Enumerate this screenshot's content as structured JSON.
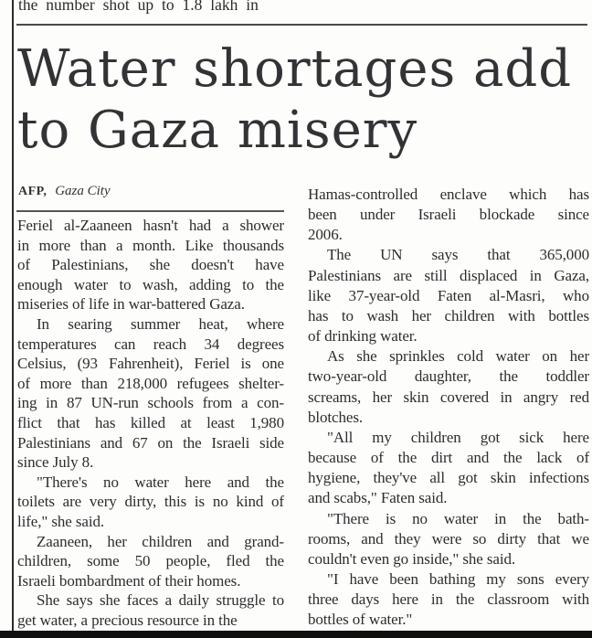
{
  "colors": {
    "ink": "#2d2d2e",
    "headline_ink": "#333336",
    "rule": "#4a4a4a",
    "bottom_bar": "#0f0f0f",
    "paper": "#fdfdfc"
  },
  "prev_article_snippet": "the number shot up to 1.8 lakh in",
  "headline": "Water shortages add to Gaza misery",
  "byline": {
    "agency": "AFP,",
    "location": "Gaza City"
  },
  "article": {
    "columns": [
      {
        "paragraphs": [
          {
            "indent": false,
            "lines": [
              "Feriel al-Zaaneen hasn't had a shower",
              "in more than a month. Like thousands",
              "of Palestinians, she doesn't have",
              "enough water to wash, adding to the",
              "miseries of life in war-battered Gaza."
            ]
          },
          {
            "indent": true,
            "lines": [
              "In searing summer heat, where",
              "temperatures can reach 34 degrees",
              "Celsius, (93 Fahrenheit), Feriel is one",
              "of more than 218,000 refugees shelter-",
              "ing in 87 UN-run schools from a con-",
              "flict that has killed at least 1,980",
              "Palestinians and 67 on the Israeli side",
              "since July 8."
            ]
          },
          {
            "indent": true,
            "lines": [
              "\"There's no water here and the",
              "toilets are very dirty, this is no kind of",
              "life,\" she said."
            ]
          },
          {
            "indent": true,
            "lines": [
              "Zaaneen, her children and grand-",
              "children, some 50 people, fled the",
              "Israeli bombardment of their homes."
            ]
          },
          {
            "indent": true,
            "lines": [
              "She says she faces a daily struggle to",
              "get water, a precious resource in the"
            ]
          }
        ]
      },
      {
        "paragraphs": [
          {
            "indent": false,
            "lines": [
              "Hamas-controlled enclave which has",
              "been under Israeli blockade since",
              "2006."
            ]
          },
          {
            "indent": true,
            "lines": [
              "The UN says that 365,000",
              "Palestinians are still displaced in Gaza,",
              "like 37-year-old Faten al-Masri, who",
              "has to wash her children with bottles",
              "of drinking water."
            ]
          },
          {
            "indent": true,
            "lines": [
              "As she sprinkles cold water on her",
              "two-year-old daughter, the toddler",
              "screams, her skin covered in angry red",
              "blotches."
            ]
          },
          {
            "indent": true,
            "lines": [
              "\"All my children got sick here",
              "because of the dirt and the lack of",
              "hygiene, they've all got skin infections",
              "and scabs,\" Faten said."
            ]
          },
          {
            "indent": true,
            "lines": [
              "\"There is no water in the bath-",
              "rooms, and they were so dirty that we",
              "couldn't even go inside,\" she said."
            ]
          },
          {
            "indent": true,
            "lines": [
              "\"I have been bathing my sons every",
              "three days here in the classroom with",
              "bottles of water.\""
            ]
          }
        ]
      }
    ]
  }
}
